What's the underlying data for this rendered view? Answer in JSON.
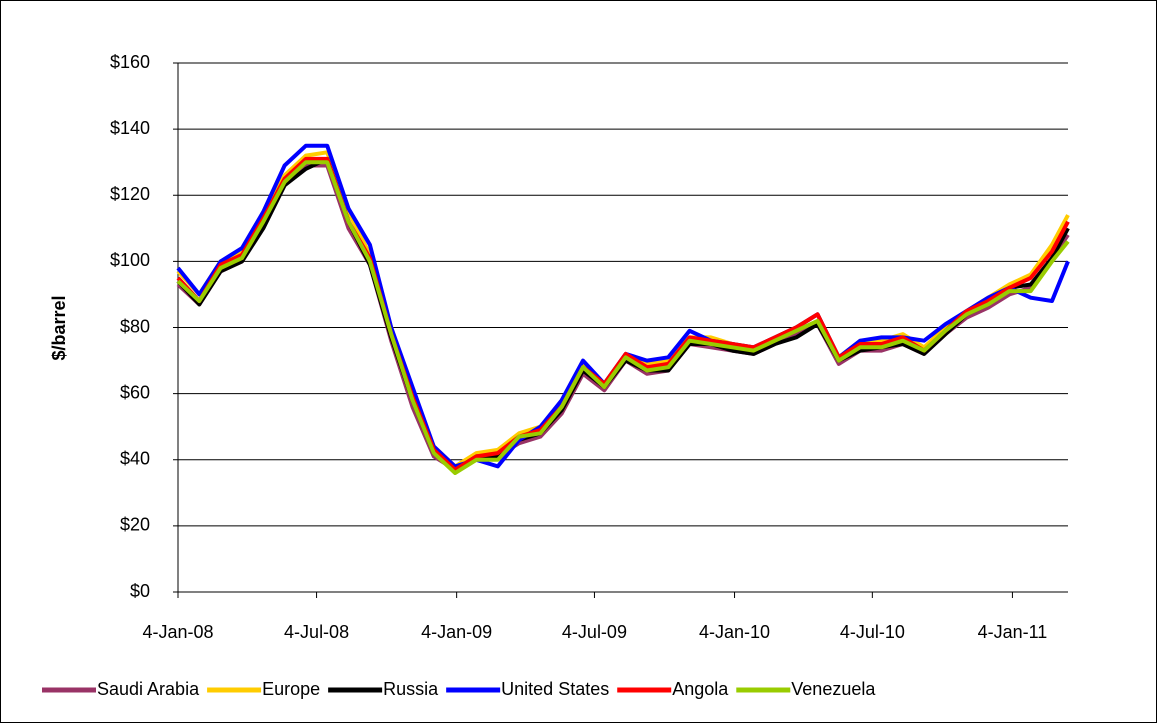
{
  "chart_data": {
    "type": "line",
    "y_label": "$/barrel",
    "x": [
      "2008-01-04",
      "2008-02-01",
      "2008-02-29",
      "2008-03-28",
      "2008-04-25",
      "2008-05-23",
      "2008-06-20",
      "2008-07-18",
      "2008-08-15",
      "2008-09-12",
      "2008-10-10",
      "2008-11-07",
      "2008-12-05",
      "2009-01-02",
      "2009-01-30",
      "2009-02-27",
      "2009-03-27",
      "2009-04-24",
      "2009-05-22",
      "2009-06-19",
      "2009-07-17",
      "2009-08-14",
      "2009-09-11",
      "2009-10-09",
      "2009-11-06",
      "2009-12-04",
      "2010-01-01",
      "2010-01-29",
      "2010-02-26",
      "2010-03-26",
      "2010-04-23",
      "2010-05-21",
      "2010-06-18",
      "2010-07-16",
      "2010-08-13",
      "2010-09-10",
      "2010-10-08",
      "2010-11-05",
      "2010-12-03",
      "2010-12-31",
      "2011-01-28",
      "2011-02-25",
      "2011-03-18"
    ],
    "series": [
      {
        "name": "Saudi Arabia",
        "color": "#993366",
        "values": [
          93,
          87,
          97,
          100,
          111,
          123,
          129,
          129,
          110,
          99,
          76,
          56,
          41,
          37,
          40,
          41,
          45,
          47,
          54,
          66,
          61,
          70,
          66,
          67,
          75,
          74,
          73,
          72,
          75,
          78,
          81,
          69,
          73,
          73,
          75,
          72,
          78,
          83,
          86,
          90,
          92,
          101,
          108
        ]
      },
      {
        "name": "Europe",
        "color": "#ffcc00",
        "values": [
          97,
          90,
          100,
          103,
          114,
          126,
          132,
          133,
          115,
          102,
          80,
          60,
          44,
          38,
          42,
          43,
          48,
          50,
          57,
          69,
          63,
          72,
          69,
          70,
          77,
          77,
          75,
          74,
          77,
          80,
          84,
          71,
          76,
          76,
          78,
          74,
          80,
          85,
          89,
          93,
          96,
          105,
          114
        ]
      },
      {
        "name": "Russia",
        "color": "#000000",
        "values": [
          94,
          87,
          97,
          100,
          110,
          123,
          128,
          131,
          112,
          99,
          77,
          58,
          42,
          37,
          41,
          41,
          46,
          48,
          55,
          67,
          62,
          70,
          67,
          67,
          75,
          75,
          73,
          72,
          75,
          77,
          81,
          70,
          73,
          74,
          75,
          72,
          78,
          84,
          87,
          92,
          93,
          101,
          110
        ]
      },
      {
        "name": "United States",
        "color": "#0000ff",
        "values": [
          98,
          90,
          100,
          104,
          115,
          129,
          135,
          135,
          116,
          105,
          80,
          62,
          44,
          38,
          40,
          38,
          46,
          50,
          58,
          70,
          63,
          72,
          70,
          71,
          79,
          76,
          75,
          74,
          77,
          80,
          84,
          71,
          76,
          77,
          77,
          76,
          81,
          85,
          89,
          92,
          89,
          88,
          100
        ]
      },
      {
        "name": "Angola",
        "color": "#ff0000",
        "values": [
          95,
          88,
          99,
          102,
          113,
          125,
          131,
          131,
          112,
          101,
          78,
          59,
          43,
          37,
          41,
          42,
          47,
          49,
          56,
          68,
          63,
          72,
          68,
          69,
          77,
          76,
          75,
          74,
          77,
          80,
          84,
          71,
          75,
          75,
          77,
          73,
          79,
          85,
          88,
          92,
          95,
          103,
          112
        ]
      },
      {
        "name": "Venezuela",
        "color": "#99cc00",
        "values": [
          94,
          88,
          98,
          101,
          112,
          124,
          130,
          130,
          112,
          100,
          78,
          58,
          42,
          36,
          40,
          40,
          47,
          48,
          56,
          68,
          62,
          71,
          67,
          68,
          76,
          75,
          74,
          73,
          76,
          79,
          82,
          70,
          74,
          74,
          76,
          73,
          79,
          84,
          87,
          91,
          91,
          100,
          106
        ]
      }
    ],
    "xlim": [
      "2008-01-04",
      "2011-03-18"
    ],
    "xticks": [
      {
        "value": "2008-01-04",
        "label": "4-Jan-08"
      },
      {
        "value": "2008-07-04",
        "label": "4-Jul-08"
      },
      {
        "value": "2009-01-04",
        "label": "4-Jan-09"
      },
      {
        "value": "2009-07-04",
        "label": "4-Jul-09"
      },
      {
        "value": "2010-01-04",
        "label": "4-Jan-10"
      },
      {
        "value": "2010-07-04",
        "label": "4-Jul-10"
      },
      {
        "value": "2011-01-04",
        "label": "4-Jan-11"
      }
    ],
    "ylim": [
      0,
      160
    ],
    "yticks": [
      {
        "value": 0,
        "label": "$0"
      },
      {
        "value": 20,
        "label": "$20"
      },
      {
        "value": 40,
        "label": "$40"
      },
      {
        "value": 60,
        "label": "$60"
      },
      {
        "value": 80,
        "label": "$80"
      },
      {
        "value": 100,
        "label": "$100"
      },
      {
        "value": 120,
        "label": "$120"
      },
      {
        "value": 140,
        "label": "$140"
      },
      {
        "value": 160,
        "label": "$160"
      }
    ],
    "grid": true,
    "legend": "bottom"
  }
}
